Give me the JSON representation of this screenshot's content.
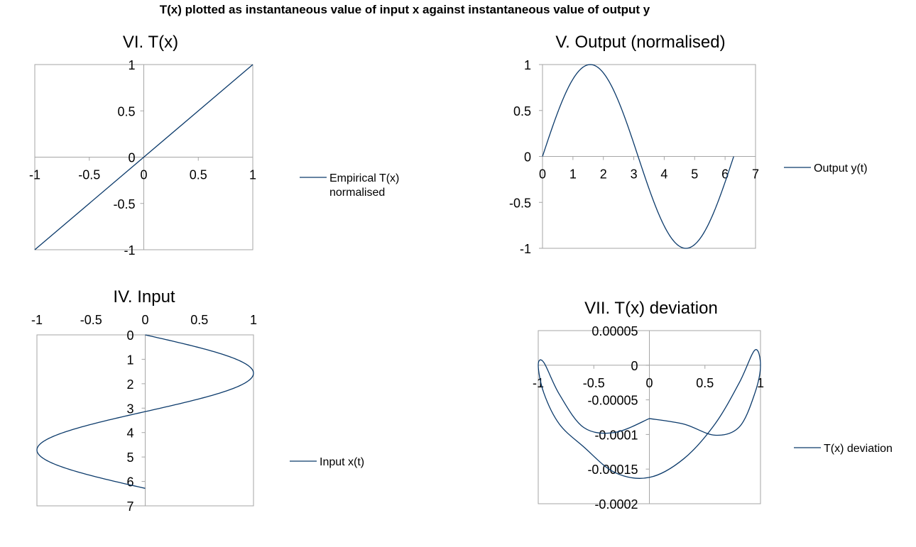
{
  "title": "T(x) plotted as instantaneous value of input x against instantaneous value of output y",
  "colors": {
    "series": "#0b3a6b",
    "axis": "#a6a6a6"
  },
  "chart_data": [
    {
      "id": "tx",
      "type": "line",
      "title": "VI. T(x)",
      "xlim": [
        -1,
        1
      ],
      "ylim": [
        -1,
        1
      ],
      "xticks": [
        "-1",
        "-0.5",
        "0",
        "0.5",
        "1"
      ],
      "yticks": [
        "1",
        "0.5",
        "0",
        "-0.5",
        "-1"
      ],
      "series": [
        {
          "name": "Empirical T(x) normalised",
          "legend_lines": [
            "Empirical T(x)",
            "normalised"
          ],
          "x": [
            -1,
            1
          ],
          "y": [
            -1,
            1
          ]
        }
      ]
    },
    {
      "id": "output",
      "type": "line",
      "title": "V. Output (normalised)",
      "xlim": [
        0,
        7
      ],
      "ylim": [
        -1,
        1
      ],
      "xticks": [
        "0",
        "1",
        "2",
        "3",
        "4",
        "5",
        "6",
        "7"
      ],
      "yticks": [
        "1",
        "0.5",
        "0",
        "-0.5",
        "-1"
      ],
      "series": [
        {
          "name": "Output y(t)",
          "function": "sin",
          "x_range": [
            0,
            6.283
          ]
        }
      ]
    },
    {
      "id": "input",
      "type": "line",
      "title": "IV. Input",
      "xlim": [
        -1,
        1
      ],
      "ylim": [
        0,
        7
      ],
      "y_axis_reversed": true,
      "xticks": [
        "-1",
        "-0.5",
        "0",
        "0.5",
        "1"
      ],
      "yticks": [
        "0",
        "1",
        "2",
        "3",
        "4",
        "5",
        "6",
        "7"
      ],
      "series": [
        {
          "name": "Input x(t)",
          "function": "sin",
          "t_range": [
            0,
            6.283
          ]
        }
      ]
    },
    {
      "id": "deviation",
      "type": "line",
      "title": "VII. T(x) deviation",
      "xlim": [
        -1,
        1
      ],
      "ylim": [
        -0.0002,
        5e-05
      ],
      "xticks": [
        "-1",
        "-0.5",
        "0",
        "0.5",
        "1"
      ],
      "yticks": [
        "0.00005",
        "0",
        "-0.00005",
        "-0.0001",
        "-0.00015",
        "-0.0002"
      ],
      "series": [
        {
          "name": "T(x) deviation",
          "x": [
            0,
            0.31,
            0.59,
            0.81,
            0.95,
            1.0,
            0.95,
            0.81,
            0.59,
            0.31,
            0,
            -0.31,
            -0.59,
            -0.81,
            -0.95,
            -1.0,
            -0.95,
            -0.81,
            -0.59,
            -0.31,
            0
          ],
          "y": [
            -7.7e-05,
            -8.5e-05,
            -0.000101,
            -8.9e-05,
            -4e-05,
            0.0,
            2.2e-05,
            -2.5e-05,
            -8.5e-05,
            -0.000135,
            -0.000162,
            -0.000155,
            -0.000118,
            -8.5e-05,
            -4e-05,
            0.0,
            4e-06,
            -4.2e-05,
            -9e-05,
            -9.7e-05,
            -7.7e-05
          ]
        }
      ]
    }
  ]
}
